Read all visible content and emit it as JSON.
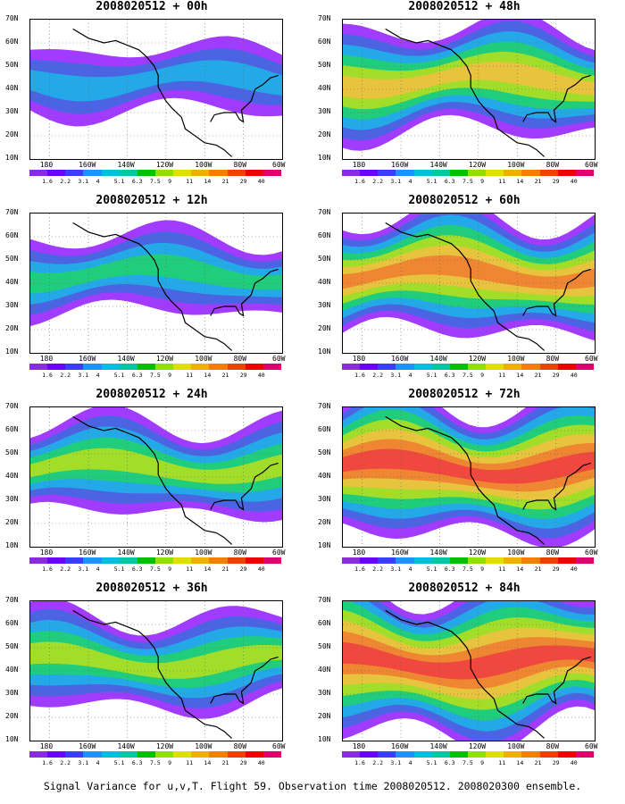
{
  "panels": [
    {
      "title": "2008020512 + 00h",
      "level": 0
    },
    {
      "title": "2008020512 + 48h",
      "level": 3
    },
    {
      "title": "2008020512 + 12h",
      "level": 1
    },
    {
      "title": "2008020512 + 60h",
      "level": 4
    },
    {
      "title": "2008020512 + 24h",
      "level": 2
    },
    {
      "title": "2008020512 + 72h",
      "level": 5
    },
    {
      "title": "2008020512 + 36h",
      "level": 2
    },
    {
      "title": "2008020512 + 84h",
      "level": 6
    }
  ],
  "y_labels": [
    "70N",
    "60N",
    "50N",
    "40N",
    "30N",
    "20N",
    "10N"
  ],
  "x_labels": [
    "180",
    "160W",
    "140W",
    "120W",
    "100W",
    "80W",
    "60W"
  ],
  "colorbar": {
    "colors": [
      "#8a2be2",
      "#6a00ff",
      "#3c3cff",
      "#1e90ff",
      "#00c0e0",
      "#00c8a0",
      "#00c000",
      "#90e000",
      "#e0e000",
      "#f0b000",
      "#f08000",
      "#f04000",
      "#f00000",
      "#e0006e"
    ],
    "labels": [
      "1.6",
      "2.2",
      "3.1",
      "4",
      "5.1",
      "6.3",
      "7.5",
      "9",
      "11",
      "14",
      "21",
      "29",
      "40"
    ]
  },
  "caption": "Signal Variance for u,v,T. Flight 59. Observation time 2008020512. 2008020300 ensemble."
}
